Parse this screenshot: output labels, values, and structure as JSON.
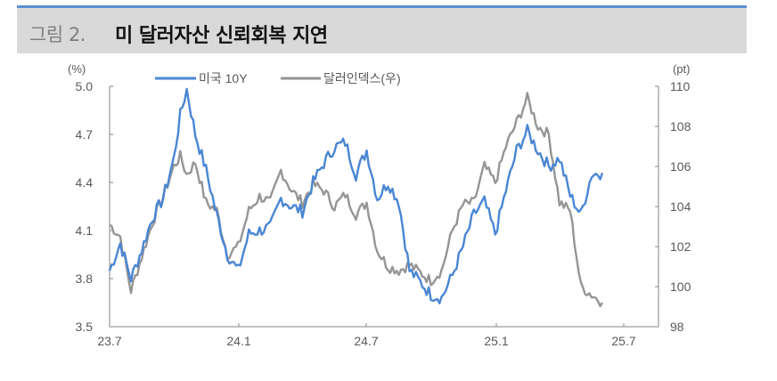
{
  "header": {
    "figure_label": "그림 2.",
    "title": "미 달러자산 신뢰회복 지연",
    "accent_color": "#5b8fd0",
    "background_color": "#d9d9d9"
  },
  "chart_data": {
    "type": "line",
    "title": "미 달러자산 신뢰회복 지연",
    "left_axis": {
      "unit": "(%)",
      "ticks": [
        "5.0",
        "4.7",
        "4.4",
        "4.1",
        "3.8",
        "3.5"
      ],
      "ylim": [
        3.5,
        5.0
      ]
    },
    "right_axis": {
      "unit": "(pt)",
      "ticks": [
        "110",
        "108",
        "106",
        "104",
        "102",
        "100",
        "98"
      ],
      "ylim": [
        98,
        110
      ]
    },
    "x_axis": {
      "ticks": [
        "23.7",
        "24.1",
        "24.7",
        "25.1",
        "25.7"
      ]
    },
    "legend": [
      {
        "name": "미국 10Y",
        "color": "#4a86d4",
        "axis": "left"
      },
      {
        "name": "달러인덱스(우)",
        "color": "#959595",
        "axis": "right"
      }
    ],
    "legend_position": "top",
    "grid": false,
    "x_months": [
      0,
      0.5,
      1,
      1.5,
      2,
      2.5,
      3,
      3.3,
      3.6,
      4,
      4.5,
      5,
      5.5,
      6,
      6.5,
      7,
      7.5,
      8,
      8.5,
      9,
      9.5,
      10,
      10.5,
      11,
      11.5,
      12,
      12.5,
      13,
      13.5,
      14,
      14.5,
      15,
      15.5,
      16,
      16.5,
      17,
      17.5,
      18,
      18.5,
      19,
      19.5,
      20,
      20.5,
      21,
      21.5,
      22,
      22.5,
      23
    ],
    "series": [
      {
        "name": "미국 10Y",
        "axis": "left",
        "values": [
          3.85,
          4.02,
          3.8,
          3.98,
          4.18,
          4.3,
          4.55,
          4.82,
          4.98,
          4.7,
          4.48,
          4.2,
          3.95,
          3.85,
          4.08,
          4.1,
          4.12,
          4.3,
          4.25,
          4.22,
          4.4,
          4.52,
          4.62,
          4.65,
          4.45,
          4.6,
          4.3,
          4.4,
          4.28,
          3.85,
          3.78,
          3.7,
          3.68,
          3.82,
          4.0,
          4.2,
          4.28,
          4.08,
          4.35,
          4.6,
          4.72,
          4.6,
          4.5,
          4.55,
          4.32,
          4.2,
          4.45,
          4.46
        ]
      },
      {
        "name": "달러인덱스(우)",
        "axis": "right",
        "values": [
          103.1,
          102.5,
          99.8,
          101.5,
          103.2,
          104.5,
          106.0,
          106.5,
          105.6,
          106.2,
          104.2,
          103.8,
          101.6,
          102.0,
          103.8,
          104.5,
          104.2,
          105.8,
          104.8,
          104.2,
          105.1,
          104.8,
          104.0,
          104.6,
          103.6,
          104.2,
          101.8,
          101.0,
          100.8,
          101.1,
          100.7,
          100.3,
          100.8,
          102.8,
          104.1,
          104.2,
          106.0,
          105.2,
          107.0,
          108.2,
          109.4,
          108.0,
          107.6,
          104.2,
          103.8,
          100.0,
          99.6,
          99.2
        ]
      }
    ]
  }
}
